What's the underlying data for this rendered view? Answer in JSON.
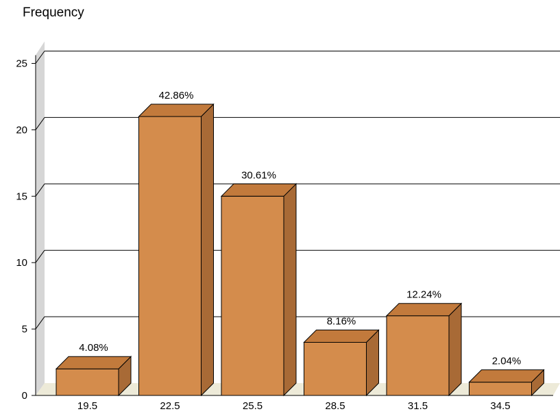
{
  "chart_data": {
    "type": "bar",
    "title": "",
    "xlabel": "",
    "ylabel": "Frequency",
    "categories": [
      "19.5",
      "22.5",
      "25.5",
      "28.5",
      "31.5",
      "34.5"
    ],
    "values": [
      2,
      21,
      15,
      4,
      6,
      1
    ],
    "data_labels": [
      "4.08%",
      "42.86%",
      "30.61%",
      "8.16%",
      "12.24%",
      "2.04%"
    ],
    "y_ticks": [
      "0",
      "5",
      "10",
      "15",
      "20",
      "25"
    ],
    "ylim": [
      0,
      25
    ],
    "grid": true,
    "legend": "none",
    "colors": {
      "bar_front": "#D48C4C",
      "bar_top": "#C27A3C",
      "bar_side": "#A86A36",
      "wall": "#D6D6D6",
      "floor": "#EDEAD8",
      "outline": "#000000",
      "grid": "#000000"
    }
  }
}
